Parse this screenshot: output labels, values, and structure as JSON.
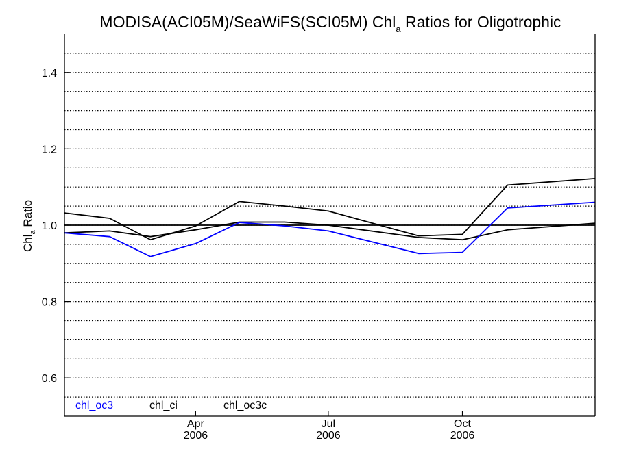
{
  "chart_data": {
    "type": "line",
    "title": {
      "prefix": "MODISA(ACI05M)/SeaWiFS(SCI05M)  Chl",
      "sub": "a",
      "suffix": " Ratios for Oligotrophic"
    },
    "ylabel": {
      "prefix": "Chl",
      "sub": "a",
      "suffix": " Ratio"
    },
    "xlim": [
      "2006-01-01",
      "2006-12-31"
    ],
    "ylim": [
      0.5,
      1.5
    ],
    "y_ticks": [
      0.6,
      0.8,
      1.0,
      1.2,
      1.4
    ],
    "y_tick_labels": [
      "0.6",
      "0.8",
      "1.0",
      "1.2",
      "1.4"
    ],
    "x_ticks": [
      {
        "date": "2006-04-01",
        "month": "Apr",
        "year": "2006"
      },
      {
        "date": "2006-07-01",
        "month": "Jul",
        "year": "2006"
      },
      {
        "date": "2006-10-01",
        "month": "Oct",
        "year": "2006"
      }
    ],
    "grid": "dotted horizontal",
    "reference_line": 1.0,
    "legend_placement": "bottom-left",
    "series": [
      {
        "name": "chl_oc3",
        "color": "#0000ff",
        "x": [
          "2006-01-01",
          "2006-02-01",
          "2006-03-01",
          "2006-04-01",
          "2006-05-01",
          "2006-06-01",
          "2006-07-01",
          "2006-09-01",
          "2006-10-01",
          "2006-11-01",
          "2006-12-31"
        ],
        "y": [
          0.98,
          0.97,
          0.918,
          0.952,
          1.007,
          0.998,
          0.985,
          0.926,
          0.929,
          1.045,
          1.06
        ]
      },
      {
        "name": "chl_ci",
        "color": "#000000",
        "x": [
          "2006-01-01",
          "2006-02-01",
          "2006-03-01",
          "2006-04-01",
          "2006-05-01",
          "2006-06-01",
          "2006-07-01",
          "2006-09-01",
          "2006-10-01",
          "2006-11-01",
          "2006-12-31"
        ],
        "y": [
          1.032,
          1.018,
          0.962,
          0.998,
          1.062,
          1.05,
          1.037,
          0.972,
          0.976,
          1.105,
          1.122
        ]
      },
      {
        "name": "chl_oc3c",
        "color": "#000000",
        "x": [
          "2006-01-01",
          "2006-02-01",
          "2006-03-01",
          "2006-04-01",
          "2006-05-01",
          "2006-06-01",
          "2006-07-01",
          "2006-09-01",
          "2006-10-01",
          "2006-11-01",
          "2006-12-31"
        ],
        "y": [
          0.98,
          0.985,
          0.97,
          0.988,
          1.008,
          1.008,
          1.0,
          0.968,
          0.962,
          0.988,
          1.005
        ]
      }
    ]
  }
}
